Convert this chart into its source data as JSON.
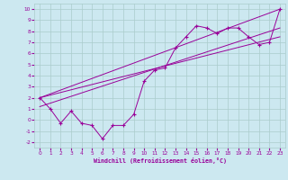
{
  "xlabel": "Windchill (Refroidissement éolien,°C)",
  "background_color": "#cce8f0",
  "grid_color": "#aacccc",
  "line_color": "#990099",
  "xlim": [
    -0.5,
    23.5
  ],
  "ylim": [
    -2.5,
    10.5
  ],
  "xticks": [
    0,
    1,
    2,
    3,
    4,
    5,
    6,
    7,
    8,
    9,
    10,
    11,
    12,
    13,
    14,
    15,
    16,
    17,
    18,
    19,
    20,
    21,
    22,
    23
  ],
  "yticks": [
    -2,
    -1,
    0,
    1,
    2,
    3,
    4,
    5,
    6,
    7,
    8,
    9,
    10
  ],
  "data_x": [
    0,
    1,
    2,
    3,
    4,
    5,
    6,
    7,
    8,
    9,
    10,
    11,
    12,
    13,
    14,
    15,
    16,
    17,
    18,
    19,
    20,
    21,
    22,
    23
  ],
  "data_y": [
    2.0,
    1.0,
    -0.3,
    0.8,
    -0.3,
    -0.5,
    -1.7,
    -0.5,
    -0.5,
    0.5,
    3.5,
    4.5,
    4.7,
    6.5,
    7.5,
    8.5,
    8.3,
    7.8,
    8.3,
    8.3,
    7.5,
    6.8,
    7.0,
    10.0
  ],
  "trend_lines": [
    {
      "x0": 0,
      "y0": 2.0,
      "x1": 23,
      "y1": 10.0
    },
    {
      "x0": 0,
      "y0": 2.0,
      "x1": 23,
      "y1": 7.5
    },
    {
      "x0": 0,
      "y0": 1.2,
      "x1": 23,
      "y1": 8.3
    }
  ]
}
